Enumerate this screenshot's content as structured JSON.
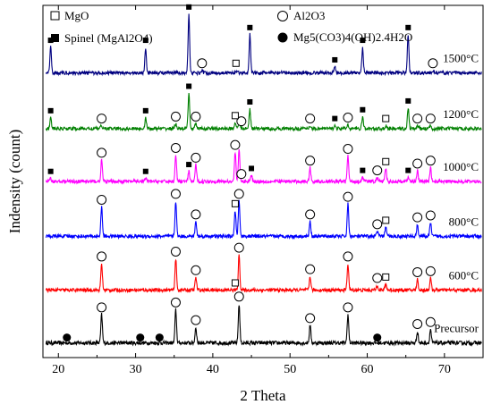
{
  "chart_data": {
    "type": "line",
    "title": "",
    "xlabel": "2 Theta",
    "ylabel": "Indensity (count)",
    "xlim": [
      18,
      75
    ],
    "xticks": [
      20,
      30,
      40,
      50,
      60,
      70
    ],
    "grid": false,
    "legend": [
      {
        "name": "MgO",
        "marker": "open-square"
      },
      {
        "name": "Spinel (MgAl2O4)",
        "marker": "filled-square"
      },
      {
        "name": "Al2O3",
        "marker": "open-circle"
      },
      {
        "name": "Mg5(CO3)4(OH)2.4H2O",
        "marker": "filled-circle"
      }
    ],
    "series": [
      {
        "name": "Precursor",
        "color": "#000000",
        "baseline": 0.0,
        "noise": 0.4,
        "peaks": [
          [
            25.6,
            2.9,
            0.14
          ],
          [
            35.2,
            3.4,
            0.14
          ],
          [
            37.8,
            1.6,
            0.14
          ],
          [
            43.4,
            4.0,
            0.14
          ],
          [
            52.6,
            1.8,
            0.14
          ],
          [
            57.5,
            2.9,
            0.14
          ],
          [
            66.5,
            1.2,
            0.14
          ],
          [
            68.2,
            1.4,
            0.14
          ]
        ],
        "markers": [
          [
            25.6,
            0
          ],
          [
            35.2,
            0
          ],
          [
            37.8,
            0
          ],
          [
            43.4,
            0
          ],
          [
            52.6,
            0
          ],
          [
            57.5,
            0
          ],
          [
            66.5,
            0
          ],
          [
            68.2,
            0
          ],
          [
            21.1,
            3
          ],
          [
            30.6,
            3
          ],
          [
            33.1,
            3
          ],
          [
            61.3,
            3
          ]
        ]
      },
      {
        "name": "600°C",
        "color": "#ff0000",
        "baseline": 5.4,
        "noise": 0.35,
        "peaks": [
          [
            25.6,
            2.7,
            0.14
          ],
          [
            35.2,
            3.2,
            0.14
          ],
          [
            37.8,
            1.3,
            0.14
          ],
          [
            43.4,
            3.6,
            0.14
          ],
          [
            52.6,
            1.4,
            0.14
          ],
          [
            57.5,
            2.7,
            0.14
          ],
          [
            61.3,
            0.5,
            0.16
          ],
          [
            62.4,
            0.6,
            0.16
          ],
          [
            66.5,
            1.1,
            0.14
          ],
          [
            68.2,
            1.2,
            0.14
          ]
        ],
        "markers": [
          [
            25.6,
            0
          ],
          [
            35.2,
            0
          ],
          [
            37.8,
            0
          ],
          [
            43.4,
            0
          ],
          [
            52.6,
            0
          ],
          [
            57.5,
            0
          ],
          [
            61.3,
            0
          ],
          [
            66.5,
            0
          ],
          [
            68.2,
            0
          ],
          [
            42.9,
            1
          ],
          [
            62.4,
            1
          ]
        ]
      },
      {
        "name": "800°C",
        "color": "#0000ff",
        "baseline": 10.9,
        "noise": 0.35,
        "peaks": [
          [
            25.6,
            3.0,
            0.14
          ],
          [
            35.2,
            3.6,
            0.14
          ],
          [
            37.8,
            1.5,
            0.14
          ],
          [
            42.9,
            2.6,
            0.14
          ],
          [
            43.4,
            3.6,
            0.14
          ],
          [
            52.6,
            1.5,
            0.14
          ],
          [
            57.5,
            3.3,
            0.14
          ],
          [
            61.3,
            0.5,
            0.16
          ],
          [
            62.4,
            0.9,
            0.16
          ],
          [
            66.5,
            1.2,
            0.14
          ],
          [
            68.2,
            1.4,
            0.14
          ]
        ],
        "markers": [
          [
            25.6,
            0
          ],
          [
            35.2,
            0
          ],
          [
            37.8,
            0
          ],
          [
            43.4,
            0
          ],
          [
            52.6,
            0
          ],
          [
            57.5,
            0
          ],
          [
            61.3,
            0
          ],
          [
            66.5,
            0
          ],
          [
            68.2,
            0
          ],
          [
            42.9,
            1
          ],
          [
            62.4,
            1
          ]
        ]
      },
      {
        "name": "1000°C",
        "color": "#ff00ff",
        "baseline": 16.5,
        "noise": 0.35,
        "peaks": [
          [
            19.0,
            0.3,
            0.16
          ],
          [
            25.6,
            2.2,
            0.14
          ],
          [
            31.3,
            0.3,
            0.16
          ],
          [
            35.2,
            2.7,
            0.14
          ],
          [
            36.9,
            1.0,
            0.14
          ],
          [
            37.8,
            1.7,
            0.14
          ],
          [
            42.9,
            3.0,
            0.14
          ],
          [
            43.4,
            3.2,
            0.14
          ],
          [
            45.0,
            0.6,
            0.16
          ],
          [
            52.6,
            1.4,
            0.14
          ],
          [
            57.5,
            2.6,
            0.14
          ],
          [
            59.4,
            0.4,
            0.16
          ],
          [
            61.3,
            0.4,
            0.16
          ],
          [
            62.4,
            1.3,
            0.14
          ],
          [
            65.3,
            0.4,
            0.16
          ],
          [
            66.5,
            1.1,
            0.14
          ],
          [
            68.2,
            1.4,
            0.14
          ]
        ],
        "markers": [
          [
            25.6,
            0
          ],
          [
            35.2,
            0
          ],
          [
            37.8,
            0
          ],
          [
            42.9,
            0
          ],
          [
            43.7,
            0
          ],
          [
            52.6,
            0
          ],
          [
            57.5,
            0
          ],
          [
            61.3,
            0
          ],
          [
            66.5,
            0
          ],
          [
            68.2,
            0
          ],
          [
            62.4,
            1
          ],
          [
            19.0,
            2
          ],
          [
            31.3,
            2
          ],
          [
            36.9,
            2
          ],
          [
            45.0,
            2
          ],
          [
            59.4,
            2
          ],
          [
            65.3,
            2
          ]
        ]
      },
      {
        "name": "1200°C",
        "color": "#008000",
        "baseline": 21.9,
        "noise": 0.35,
        "peaks": [
          [
            19.0,
            1.1,
            0.14
          ],
          [
            25.6,
            0.3,
            0.16
          ],
          [
            31.3,
            1.1,
            0.14
          ],
          [
            35.2,
            0.5,
            0.16
          ],
          [
            36.9,
            3.6,
            0.14
          ],
          [
            37.8,
            0.5,
            0.16
          ],
          [
            42.9,
            0.6,
            0.16
          ],
          [
            43.4,
            0.7,
            0.16
          ],
          [
            44.8,
            2.0,
            0.14
          ],
          [
            52.6,
            0.3,
            0.16
          ],
          [
            55.8,
            0.3,
            0.16
          ],
          [
            57.5,
            0.4,
            0.16
          ],
          [
            59.4,
            1.2,
            0.14
          ],
          [
            62.4,
            0.3,
            0.16
          ],
          [
            65.3,
            2.1,
            0.14
          ],
          [
            66.5,
            0.3,
            0.16
          ],
          [
            68.2,
            0.3,
            0.16
          ]
        ],
        "markers": [
          [
            25.6,
            0
          ],
          [
            35.2,
            0
          ],
          [
            37.8,
            0
          ],
          [
            43.7,
            0
          ],
          [
            52.6,
            0
          ],
          [
            57.5,
            0
          ],
          [
            66.5,
            0
          ],
          [
            68.2,
            0
          ],
          [
            42.9,
            1
          ],
          [
            62.4,
            1
          ],
          [
            19.0,
            2
          ],
          [
            31.3,
            2
          ],
          [
            36.9,
            2
          ],
          [
            44.8,
            2
          ],
          [
            55.8,
            2
          ],
          [
            59.4,
            2
          ],
          [
            65.3,
            2
          ]
        ]
      },
      {
        "name": "1500°C",
        "color": "#000080",
        "baseline": 27.6,
        "noise": 0.35,
        "peaks": [
          [
            19.0,
            2.6,
            0.14
          ],
          [
            31.3,
            2.6,
            0.14
          ],
          [
            36.9,
            6.0,
            0.14
          ],
          [
            38.6,
            0.25,
            0.16
          ],
          [
            43.0,
            0.25,
            0.16
          ],
          [
            44.8,
            3.9,
            0.14
          ],
          [
            55.8,
            0.6,
            0.16
          ],
          [
            59.4,
            2.6,
            0.14
          ],
          [
            65.3,
            3.9,
            0.14
          ],
          [
            68.5,
            0.25,
            0.16
          ]
        ],
        "markers": [
          [
            38.6,
            0
          ],
          [
            68.5,
            0
          ],
          [
            43.0,
            1
          ],
          [
            19.0,
            2
          ],
          [
            31.3,
            2
          ],
          [
            36.9,
            2
          ],
          [
            44.8,
            2
          ],
          [
            55.8,
            2
          ],
          [
            59.4,
            2
          ],
          [
            65.3,
            2
          ]
        ]
      }
    ]
  }
}
